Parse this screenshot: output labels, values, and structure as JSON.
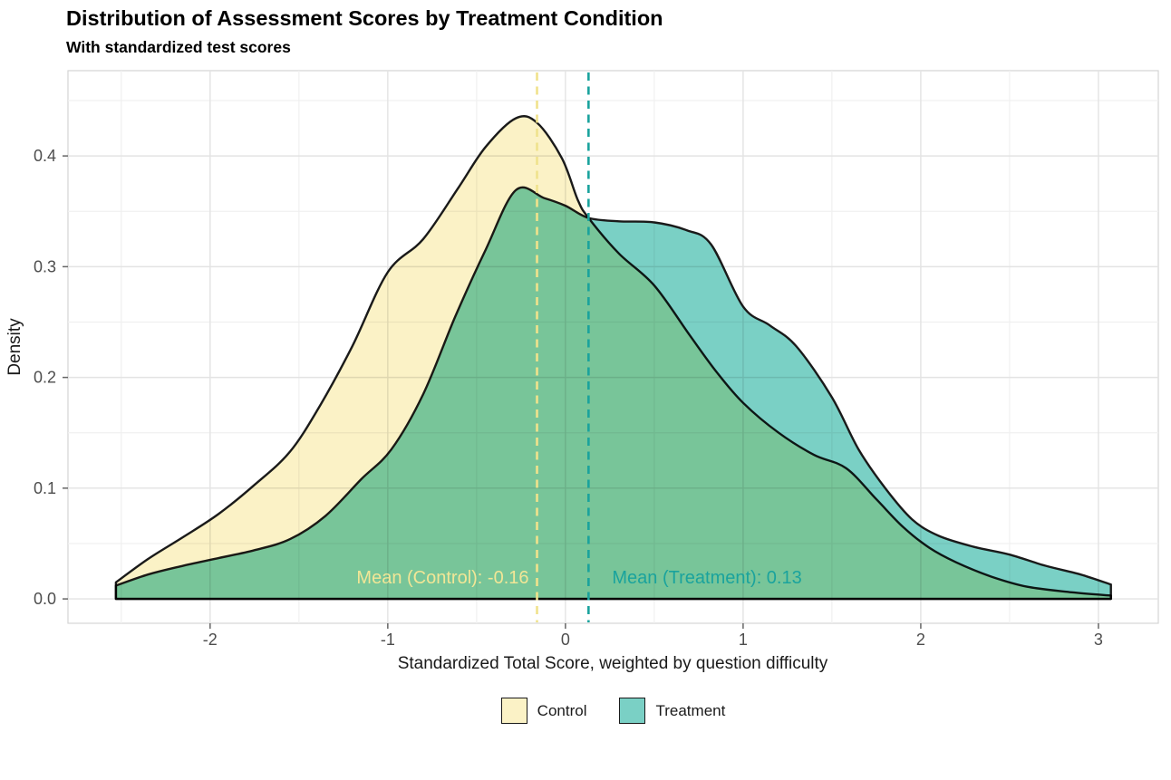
{
  "header": {
    "title": "Distribution of Assessment Scores by Treatment Condition",
    "subtitle": "With standardized test scores"
  },
  "chart_data": {
    "type": "area",
    "title": "Distribution of Assessment Scores by Treatment Condition",
    "subtitle": "With standardized test scores",
    "xlabel": "Standardized Total Score, weighted by question difficulty",
    "ylabel": "Density",
    "xlim": [
      -2.8,
      3.337
    ],
    "ylim": [
      -0.022,
      0.477
    ],
    "x_ticks": [
      -2,
      -1,
      0,
      1,
      2,
      3
    ],
    "x_tick_labels": [
      "-2",
      "-1",
      "0",
      "1",
      "2",
      "3"
    ],
    "y_ticks": [
      0.0,
      0.1,
      0.2,
      0.3,
      0.4
    ],
    "y_tick_labels": [
      "0.0",
      "0.1",
      "0.2",
      "0.3",
      "0.4"
    ],
    "grid": "major+minor",
    "legend_position": "bottom",
    "style": {
      "grid_major": "#e3e3e3",
      "grid_minor": "#f0f0f0",
      "panel_border": "#d4d4d4",
      "tick_mark": "#666666",
      "outline": "#1a1a1a"
    },
    "series": [
      {
        "name": "Control",
        "fill": "#FBF2C6",
        "accent": "#F0E28C",
        "mean": -0.16,
        "annotation": "Mean (Control): -0.16",
        "points": [
          [
            -2.53,
            0.015
          ],
          [
            -2.35,
            0.036
          ],
          [
            -2.15,
            0.056
          ],
          [
            -1.95,
            0.077
          ],
          [
            -1.75,
            0.103
          ],
          [
            -1.55,
            0.133
          ],
          [
            -1.38,
            0.175
          ],
          [
            -1.2,
            0.228
          ],
          [
            -1.0,
            0.295
          ],
          [
            -0.8,
            0.325
          ],
          [
            -0.6,
            0.372
          ],
          [
            -0.45,
            0.408
          ],
          [
            -0.28,
            0.434
          ],
          [
            -0.16,
            0.43
          ],
          [
            -0.02,
            0.398
          ],
          [
            0.07,
            0.36
          ],
          [
            0.13,
            0.344
          ],
          [
            0.3,
            0.312
          ],
          [
            0.5,
            0.283
          ],
          [
            0.7,
            0.238
          ],
          [
            0.85,
            0.205
          ],
          [
            1.0,
            0.177
          ],
          [
            1.2,
            0.15
          ],
          [
            1.4,
            0.13
          ],
          [
            1.58,
            0.118
          ],
          [
            1.75,
            0.09
          ],
          [
            1.9,
            0.065
          ],
          [
            2.05,
            0.046
          ],
          [
            2.2,
            0.033
          ],
          [
            2.4,
            0.02
          ],
          [
            2.6,
            0.011
          ],
          [
            2.85,
            0.006
          ],
          [
            3.07,
            0.003
          ]
        ]
      },
      {
        "name": "Treatment",
        "fill": "#7AD0C5",
        "accent": "#1AA39D",
        "mean": 0.13,
        "annotation": "Mean (Treatment): 0.13",
        "points": [
          [
            -2.53,
            0.012
          ],
          [
            -2.35,
            0.022
          ],
          [
            -2.15,
            0.03
          ],
          [
            -1.95,
            0.037
          ],
          [
            -1.75,
            0.044
          ],
          [
            -1.55,
            0.054
          ],
          [
            -1.35,
            0.075
          ],
          [
            -1.15,
            0.108
          ],
          [
            -0.98,
            0.135
          ],
          [
            -0.8,
            0.185
          ],
          [
            -0.62,
            0.255
          ],
          [
            -0.45,
            0.315
          ],
          [
            -0.28,
            0.369
          ],
          [
            -0.12,
            0.362
          ],
          [
            0.0,
            0.355
          ],
          [
            0.13,
            0.344
          ],
          [
            0.3,
            0.341
          ],
          [
            0.5,
            0.34
          ],
          [
            0.68,
            0.333
          ],
          [
            0.82,
            0.32
          ],
          [
            1.0,
            0.264
          ],
          [
            1.15,
            0.247
          ],
          [
            1.3,
            0.228
          ],
          [
            1.5,
            0.182
          ],
          [
            1.65,
            0.135
          ],
          [
            1.8,
            0.1
          ],
          [
            1.95,
            0.072
          ],
          [
            2.1,
            0.057
          ],
          [
            2.3,
            0.047
          ],
          [
            2.5,
            0.04
          ],
          [
            2.7,
            0.03
          ],
          [
            2.9,
            0.022
          ],
          [
            3.07,
            0.013
          ]
        ]
      }
    ]
  },
  "legend": {
    "items": [
      {
        "label": "Control",
        "color": "#FBF2C6"
      },
      {
        "label": "Treatment",
        "color": "#7AD0C5"
      }
    ]
  }
}
